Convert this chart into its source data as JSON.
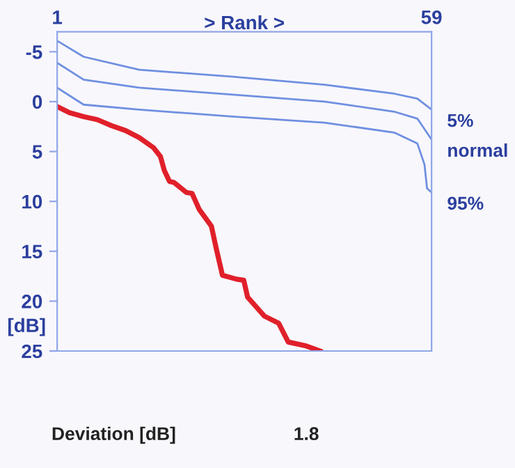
{
  "chart_data": {
    "type": "line",
    "xlabel": "> Rank >",
    "ylabel": "[dB]",
    "xlim": [
      1,
      59
    ],
    "xticks": [
      1,
      59
    ],
    "ylim": [
      25,
      -7
    ],
    "yticks": [
      -5,
      0,
      5,
      10,
      15,
      20,
      25
    ],
    "grid": false,
    "legend": false,
    "marker": "none",
    "line_style": "solid",
    "series": [
      {
        "name": "5%",
        "color": "#6f8fe0",
        "x": [
          1,
          5.1,
          13.7,
          28.2,
          42.4,
          53.2,
          56.8,
          59
        ],
        "values": [
          -6.1,
          -4.5,
          -3.2,
          -2.5,
          -1.7,
          -0.8,
          -0.3,
          0.8
        ]
      },
      {
        "name": "normal",
        "color": "#6f8fe0",
        "x": [
          1,
          5.1,
          13.7,
          28.2,
          42.4,
          53.2,
          56.8,
          59
        ],
        "values": [
          -3.9,
          -2.2,
          -1.4,
          -0.7,
          0,
          1.0,
          1.7,
          3.8
        ]
      },
      {
        "name": "95%",
        "color": "#6f8fe0",
        "x": [
          1,
          5.1,
          13.7,
          28.2,
          42.4,
          53.2,
          56.8,
          57.9,
          58.3,
          59
        ],
        "values": [
          -1.4,
          0.3,
          0.8,
          1.5,
          2.1,
          3.1,
          4.2,
          6.3,
          8.7,
          9.1
        ]
      },
      {
        "color": "#e0202a",
        "x": [
          1,
          2.9,
          5.1,
          7.2,
          9.4,
          11.6,
          13.7,
          15.9,
          17,
          17.6,
          18.4,
          19.1,
          21,
          21.9,
          23,
          24.9,
          25.6,
          26.6,
          28.8,
          29.9,
          30.5,
          33.1,
          35.3,
          36.8,
          39.6,
          41.7
        ],
        "values": [
          0.5,
          1.1,
          1.5,
          1.8,
          2.4,
          2.9,
          3.6,
          4.6,
          5.5,
          6.9,
          8.0,
          8.1,
          9.1,
          9.2,
          10.8,
          12.5,
          14.6,
          17.4,
          17.8,
          17.9,
          19.6,
          21.5,
          22.2,
          24.1,
          24.5,
          25
        ]
      }
    ],
    "annotations": [
      "Deviation [dB]",
      "1.8"
    ]
  }
}
